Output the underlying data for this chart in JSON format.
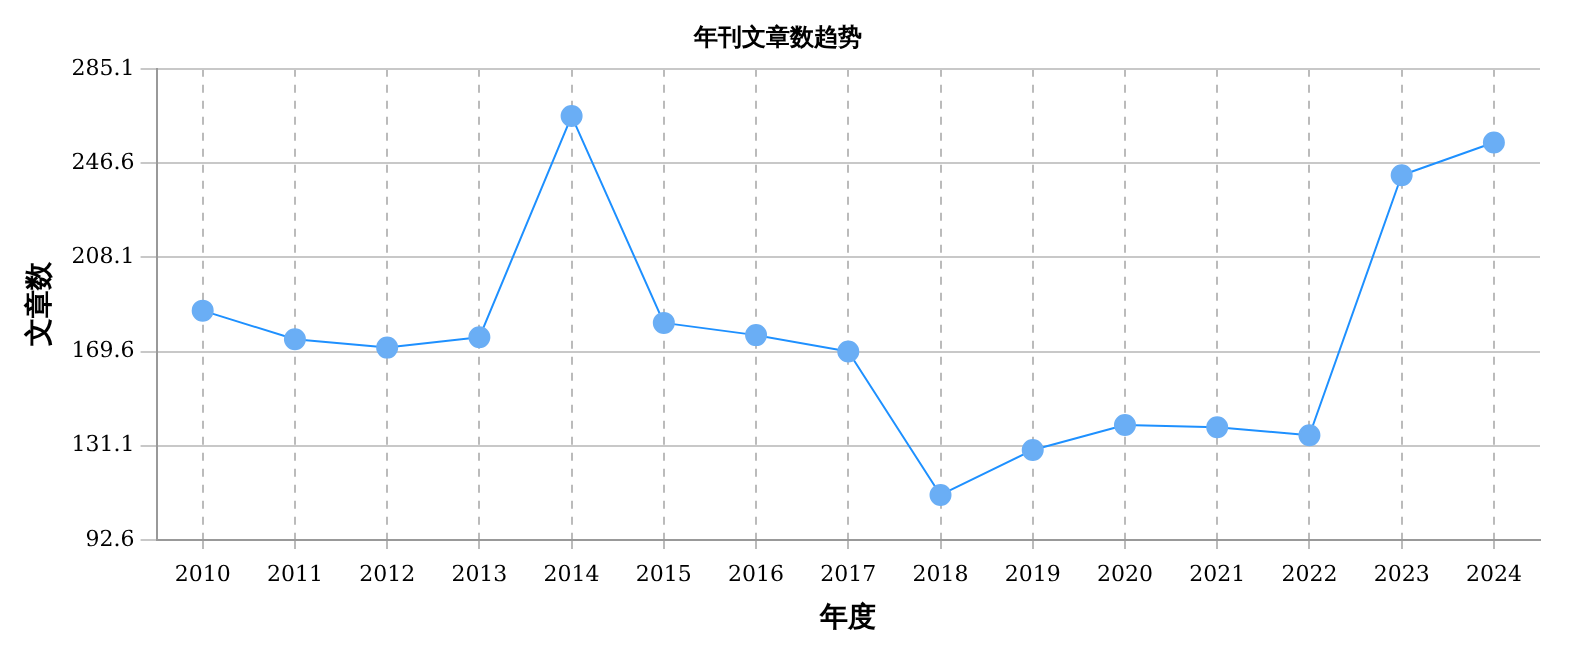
{
  "chart_data": {
    "type": "line",
    "title": "年刊文章数趋势",
    "xlabel": "年度",
    "ylabel": "文章数",
    "categories": [
      "2010",
      "2011",
      "2012",
      "2013",
      "2014",
      "2015",
      "2016",
      "2017",
      "2018",
      "2019",
      "2020",
      "2021",
      "2022",
      "2023",
      "2024"
    ],
    "series": [
      {
        "color": "#1e90ff",
        "values": [
          186.3,
          174.6,
          171.2,
          175.4,
          265.8,
          181.3,
          176.3,
          169.6,
          111.0,
          129.4,
          139.6,
          138.7,
          135.4,
          241.6,
          255.0
        ]
      }
    ],
    "ylim": [
      92.6,
      285.1
    ],
    "yticks": [
      92.6,
      131.1,
      169.6,
      208.1,
      246.6,
      285.1
    ],
    "grid": true,
    "marker": "circle",
    "line_style": "solid",
    "legend": false
  }
}
